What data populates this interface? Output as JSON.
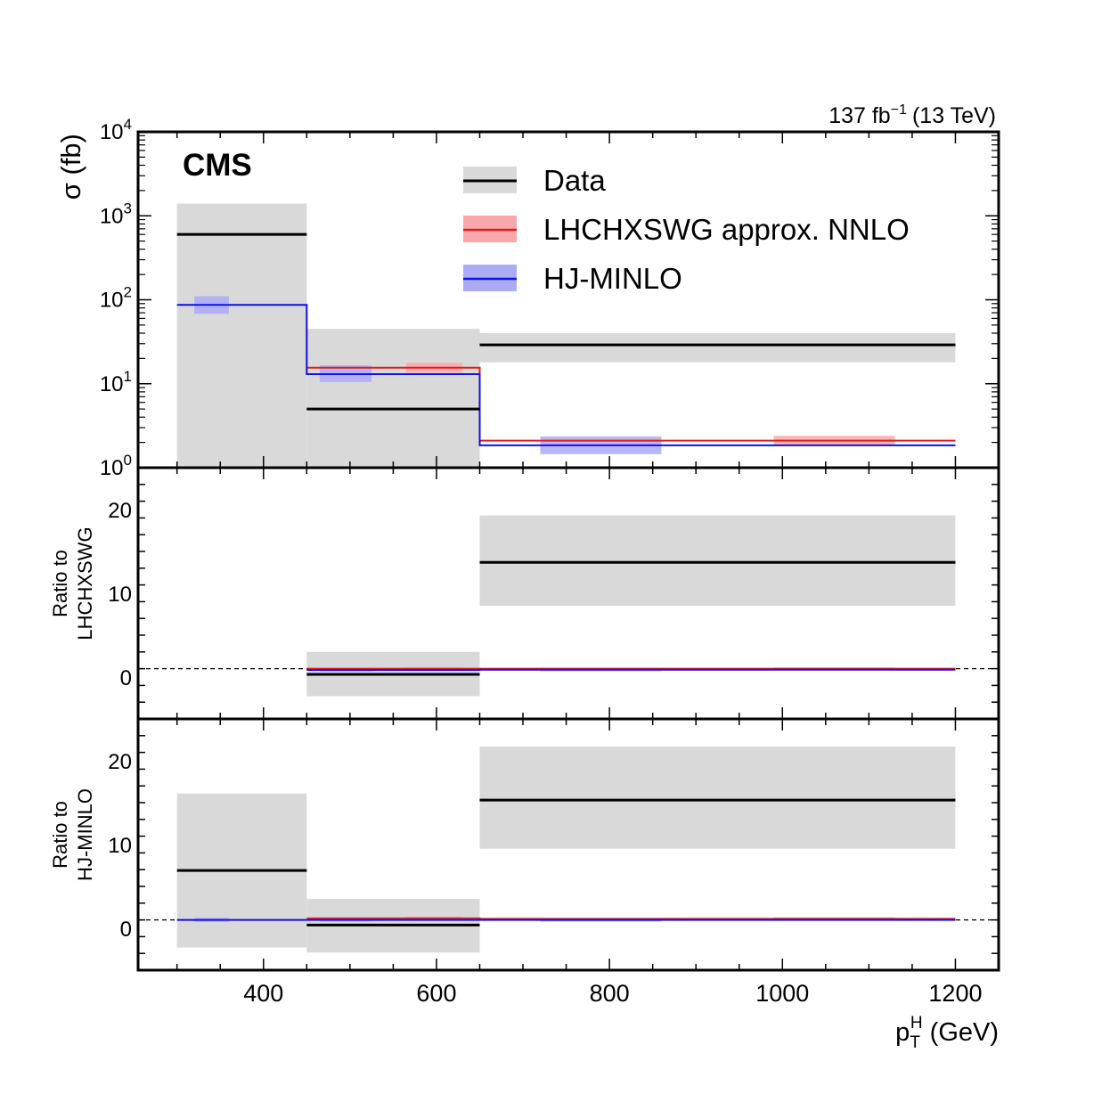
{
  "colors": {
    "data_line": "#000000",
    "data_band": "#d9d9d9",
    "lhc_line": "#e41a1c",
    "lhc_band": "#f8a8ab",
    "hj_line": "#1010e8",
    "hj_band": "#aaaaf5",
    "reference_line": "#000000"
  },
  "chart_data": {
    "type": "line",
    "experiment_label": "CMS",
    "lumi_label": "137 fb",
    "lumi_exponent": "−1",
    "energy_label": "(13 TeV)",
    "xlabel": "p",
    "xlabel_sub": "T",
    "xlabel_sup": "H",
    "xlabel_unit": "(GeV)",
    "xlim": [
      255,
      1250
    ],
    "x_ticks": [
      400,
      600,
      800,
      1000,
      1200
    ],
    "bin_edges": [
      300,
      450,
      650,
      1200
    ],
    "legend": {
      "position": "top-right",
      "entries": [
        {
          "series": "data",
          "label": "Data"
        },
        {
          "series": "lhc",
          "label": "LHCHXSWG approx. NNLO"
        },
        {
          "series": "hj",
          "label": "HJ-MINLO"
        }
      ]
    },
    "panels": [
      {
        "id": "main",
        "ylabel": "σ (fb)",
        "yscale": "log",
        "ylim": [
          1,
          10000
        ],
        "y_ticks": [
          {
            "value": 1,
            "base": "10",
            "exp": "0"
          },
          {
            "value": 10,
            "base": "10",
            "exp": "1"
          },
          {
            "value": 100,
            "base": "10",
            "exp": "2"
          },
          {
            "value": 1000,
            "base": "10",
            "exp": "3"
          },
          {
            "value": 10000,
            "base": "10",
            "exp": "4"
          }
        ],
        "series": [
          {
            "name": "data",
            "kind": "data",
            "values": [
              600,
              5,
              29
            ],
            "band_low": [
              1,
              1,
              18
            ],
            "band_high": [
              1400,
              45,
              40
            ]
          },
          {
            "name": "lhc",
            "kind": "step",
            "values": [
              null,
              15.5,
              2.1
            ],
            "boxes": [
              {
                "x": [
                  565,
                  630
                ],
                "low": 13.5,
                "high": 17.8
              },
              {
                "x": [
                  990,
                  1130
                ],
                "low": 1.85,
                "high": 2.4
              }
            ]
          },
          {
            "name": "hj",
            "kind": "step",
            "values": [
              87,
              13,
              1.85
            ],
            "boxes": [
              {
                "x": [
                  320,
                  360
                ],
                "low": 68,
                "high": 110
              },
              {
                "x": [
                  465,
                  525
                ],
                "low": 10.5,
                "high": 16.5
              },
              {
                "x": [
                  720,
                  860
                ],
                "low": 1.45,
                "high": 2.35
              }
            ]
          }
        ]
      },
      {
        "id": "ratio-lhc",
        "ylabel_lines": [
          "Ratio to",
          "LHCHXSWG"
        ],
        "yscale": "linear",
        "ylim": [
          -5,
          25
        ],
        "y_ticks": [
          0,
          10,
          20
        ],
        "reference": 1,
        "series": [
          {
            "name": "data",
            "kind": "data",
            "values": [
              null,
              0.32,
              13.7
            ],
            "band_low": [
              null,
              -2.3,
              8.5
            ],
            "band_high": [
              null,
              3,
              19.3
            ]
          },
          {
            "name": "lhc",
            "kind": "step",
            "values": [
              null,
              1,
              1
            ],
            "boxes": [
              {
                "x": [
                  565,
                  630
                ],
                "low": 0.85,
                "high": 1.15
              },
              {
                "x": [
                  990,
                  1130
                ],
                "low": 0.88,
                "high": 1.14
              }
            ]
          },
          {
            "name": "hj",
            "kind": "step",
            "values": [
              null,
              0.85,
              0.88
            ],
            "boxes": [
              {
                "x": [
                  465,
                  525
                ],
                "low": 0.65,
                "high": 1.05
              },
              {
                "x": [
                  720,
                  860
                ],
                "low": 0.7,
                "high": 1.1
              }
            ]
          }
        ]
      },
      {
        "id": "ratio-hj",
        "ylabel_lines": [
          "Ratio to",
          "HJ-MINLO"
        ],
        "yscale": "linear",
        "ylim": [
          -5,
          25
        ],
        "y_ticks": [
          0,
          10,
          20
        ],
        "reference": 1,
        "series": [
          {
            "name": "data",
            "kind": "data",
            "values": [
              6.9,
              0.38,
              15.3
            ],
            "band_low": [
              -2.3,
              -2.9,
              9.5
            ],
            "band_high": [
              16.1,
              3.5,
              21.7
            ]
          },
          {
            "name": "lhc",
            "kind": "step",
            "values": [
              null,
              1.18,
              1.13
            ],
            "boxes": [
              {
                "x": [
                  565,
                  630
                ],
                "low": 1.0,
                "high": 1.4
              },
              {
                "x": [
                  990,
                  1130
                ],
                "low": 0.98,
                "high": 1.3
              }
            ]
          },
          {
            "name": "hj",
            "kind": "step",
            "values": [
              1,
              1,
              1
            ],
            "boxes": [
              {
                "x": [
                  320,
                  360
                ],
                "low": 0.75,
                "high": 1.25
              },
              {
                "x": [
                  465,
                  525
                ],
                "low": 0.8,
                "high": 1.2
              },
              {
                "x": [
                  720,
                  860
                ],
                "low": 0.8,
                "high": 1.2
              }
            ]
          }
        ]
      }
    ]
  }
}
